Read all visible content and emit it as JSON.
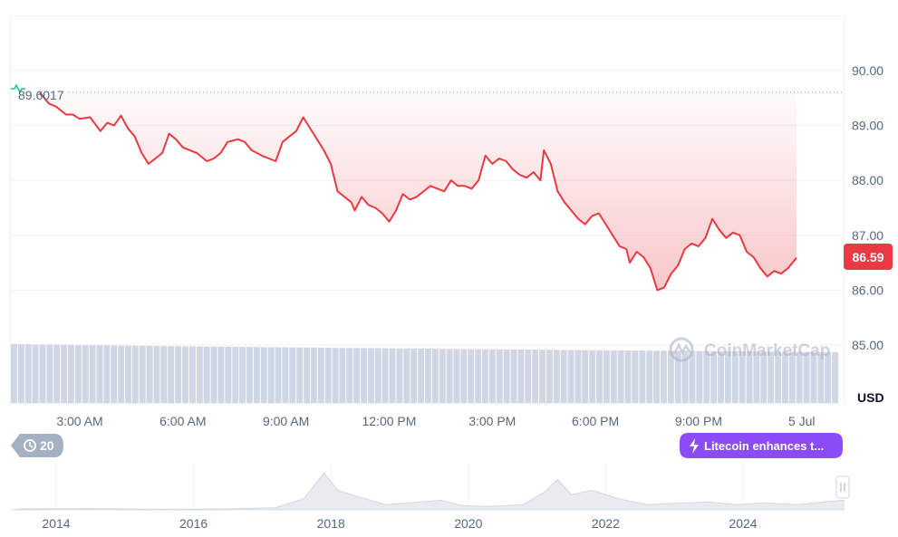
{
  "chart_data": {
    "type": "line",
    "currency_label": "USD",
    "reference_value": 89.6017,
    "reference_label": "89.6017",
    "last_value": 86.59,
    "last_label": "86.59",
    "ylim": [
      84.0,
      91.1
    ],
    "y_ticks": [
      {
        "value": 90,
        "label": "90.00"
      },
      {
        "value": 89,
        "label": "89.00"
      },
      {
        "value": 88,
        "label": "88.00"
      },
      {
        "value": 87,
        "label": "87.00"
      },
      {
        "value": 86,
        "label": "86.00"
      },
      {
        "value": 85,
        "label": "85.00"
      }
    ],
    "x_ticks": [
      {
        "hour": 3,
        "label": "3:00 AM"
      },
      {
        "hour": 6,
        "label": "6:00 AM"
      },
      {
        "hour": 9,
        "label": "9:00 AM"
      },
      {
        "hour": 12,
        "label": "12:00 PM"
      },
      {
        "hour": 15,
        "label": "3:00 PM"
      },
      {
        "hour": 18,
        "label": "6:00 PM"
      },
      {
        "hour": 21,
        "label": "9:00 PM"
      },
      {
        "hour": 24,
        "label": "5 Jul"
      }
    ],
    "series": [
      {
        "color": "#ea3943",
        "points": [
          [
            1.84,
            89.6
          ],
          [
            2.1,
            89.4
          ],
          [
            2.3,
            89.35
          ],
          [
            2.6,
            89.2
          ],
          [
            2.8,
            89.2
          ],
          [
            3.0,
            89.12
          ],
          [
            3.3,
            89.15
          ],
          [
            3.6,
            88.9
          ],
          [
            3.8,
            89.05
          ],
          [
            4.0,
            89.0
          ],
          [
            4.2,
            89.18
          ],
          [
            4.4,
            88.95
          ],
          [
            4.6,
            88.8
          ],
          [
            4.8,
            88.5
          ],
          [
            5.0,
            88.3
          ],
          [
            5.2,
            88.4
          ],
          [
            5.4,
            88.5
          ],
          [
            5.6,
            88.85
          ],
          [
            5.8,
            88.75
          ],
          [
            6.0,
            88.6
          ],
          [
            6.2,
            88.55
          ],
          [
            6.4,
            88.5
          ],
          [
            6.7,
            88.35
          ],
          [
            6.9,
            88.4
          ],
          [
            7.1,
            88.5
          ],
          [
            7.3,
            88.7
          ],
          [
            7.6,
            88.75
          ],
          [
            7.8,
            88.7
          ],
          [
            8.0,
            88.55
          ],
          [
            8.3,
            88.45
          ],
          [
            8.5,
            88.4
          ],
          [
            8.7,
            88.35
          ],
          [
            8.9,
            88.7
          ],
          [
            9.1,
            88.8
          ],
          [
            9.3,
            88.9
          ],
          [
            9.5,
            89.15
          ],
          [
            9.7,
            88.95
          ],
          [
            9.9,
            88.75
          ],
          [
            10.1,
            88.55
          ],
          [
            10.3,
            88.3
          ],
          [
            10.5,
            87.8
          ],
          [
            10.7,
            87.7
          ],
          [
            10.9,
            87.6
          ],
          [
            11.0,
            87.45
          ],
          [
            11.2,
            87.7
          ],
          [
            11.4,
            87.55
          ],
          [
            11.6,
            87.5
          ],
          [
            11.8,
            87.4
          ],
          [
            12.0,
            87.25
          ],
          [
            12.2,
            87.45
          ],
          [
            12.4,
            87.75
          ],
          [
            12.6,
            87.65
          ],
          [
            12.8,
            87.7
          ],
          [
            13.0,
            87.8
          ],
          [
            13.2,
            87.9
          ],
          [
            13.4,
            87.85
          ],
          [
            13.6,
            87.8
          ],
          [
            13.8,
            88.0
          ],
          [
            14.0,
            87.9
          ],
          [
            14.2,
            87.9
          ],
          [
            14.4,
            87.85
          ],
          [
            14.6,
            88.0
          ],
          [
            14.8,
            88.45
          ],
          [
            15.0,
            88.3
          ],
          [
            15.2,
            88.4
          ],
          [
            15.4,
            88.35
          ],
          [
            15.6,
            88.2
          ],
          [
            15.8,
            88.1
          ],
          [
            16.0,
            88.05
          ],
          [
            16.2,
            88.15
          ],
          [
            16.4,
            88.0
          ],
          [
            16.5,
            88.55
          ],
          [
            16.7,
            88.3
          ],
          [
            16.9,
            87.8
          ],
          [
            17.1,
            87.6
          ],
          [
            17.3,
            87.45
          ],
          [
            17.5,
            87.3
          ],
          [
            17.7,
            87.2
          ],
          [
            17.9,
            87.35
          ],
          [
            18.1,
            87.4
          ],
          [
            18.3,
            87.2
          ],
          [
            18.5,
            87.0
          ],
          [
            18.7,
            86.8
          ],
          [
            18.9,
            86.75
          ],
          [
            19.0,
            86.5
          ],
          [
            19.2,
            86.7
          ],
          [
            19.4,
            86.6
          ],
          [
            19.6,
            86.4
          ],
          [
            19.8,
            86.0
          ],
          [
            20.0,
            86.05
          ],
          [
            20.2,
            86.3
          ],
          [
            20.4,
            86.45
          ],
          [
            20.6,
            86.75
          ],
          [
            20.8,
            86.85
          ],
          [
            21.0,
            86.8
          ],
          [
            21.2,
            86.95
          ],
          [
            21.4,
            87.3
          ],
          [
            21.6,
            87.1
          ],
          [
            21.8,
            86.95
          ],
          [
            22.0,
            87.05
          ],
          [
            22.2,
            87.0
          ],
          [
            22.4,
            86.7
          ],
          [
            22.6,
            86.6
          ],
          [
            22.8,
            86.4
          ],
          [
            23.0,
            86.25
          ],
          [
            23.2,
            86.35
          ],
          [
            23.4,
            86.3
          ],
          [
            23.6,
            86.4
          ],
          [
            23.85,
            86.59
          ]
        ]
      }
    ],
    "volume": {
      "color": "#cfd6e4",
      "start": 85.95,
      "end": 85.8
    },
    "navigator": {
      "ticks": [
        {
          "year": 2014,
          "label": "2014"
        },
        {
          "year": 2016,
          "label": "2016"
        },
        {
          "year": 2018,
          "label": "2018"
        },
        {
          "year": 2020,
          "label": "2020"
        },
        {
          "year": 2022,
          "label": "2022"
        },
        {
          "year": 2024,
          "label": "2024"
        }
      ]
    },
    "watermark": "CoinMarketCap",
    "history_badge": "20",
    "news_badge": "Litecoin enhances t..."
  }
}
